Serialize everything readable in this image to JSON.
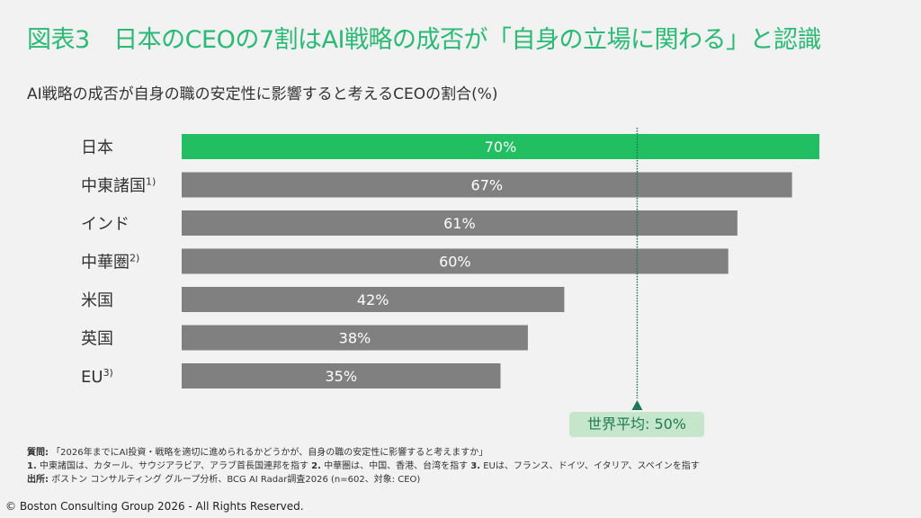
{
  "title": "図表3　日本のCEOの7割はAI戦略の成否が「自身の立場に関わる」と認識",
  "chart_data": {
    "type": "bar",
    "orientation": "horizontal",
    "title": "AI戦略の成否が自身の職の安定性に影響すると考えるCEOの割合(%)",
    "categories": [
      "日本",
      "中東諸国",
      "インド",
      "中華圏",
      "米国",
      "英国",
      "EU"
    ],
    "category_superscripts": [
      "",
      "1)",
      "",
      "2)",
      "",
      "",
      "3)"
    ],
    "values": [
      70,
      67,
      61,
      60,
      42,
      38,
      35
    ],
    "value_labels": [
      "70%",
      "67%",
      "61%",
      "60%",
      "42%",
      "38%",
      "35%"
    ],
    "highlight_color": "#21bf61",
    "bar_color": "#808080",
    "reference_line": {
      "label": "世界平均: 50%",
      "value": 50,
      "color": "#1e7a52"
    },
    "xlim": [
      0,
      70
    ]
  },
  "notes": {
    "question_label": "質問:",
    "question": "「2026年までにAI投資・戦略を適切に進められるかどうかが、自身の職の安定性に影響すると考えますか」",
    "footnotes": [
      {
        "num": "1.",
        "text": "中東諸国は、カタール、サウジアラビア、アラブ首長国連邦を指す"
      },
      {
        "num": "2.",
        "text": "中華圏は、中国、香港、台湾を指す"
      },
      {
        "num": "3.",
        "text": "EUは、フランス、ドイツ、イタリア、スペインを指す"
      }
    ],
    "source_label": "出所:",
    "source": "ボストン コンサルティング グループ分析、BCG AI Radar調査2026 (n=602、対象: CEO)"
  },
  "copyright": "© Boston Consulting Group 2026 - All Rights Reserved."
}
